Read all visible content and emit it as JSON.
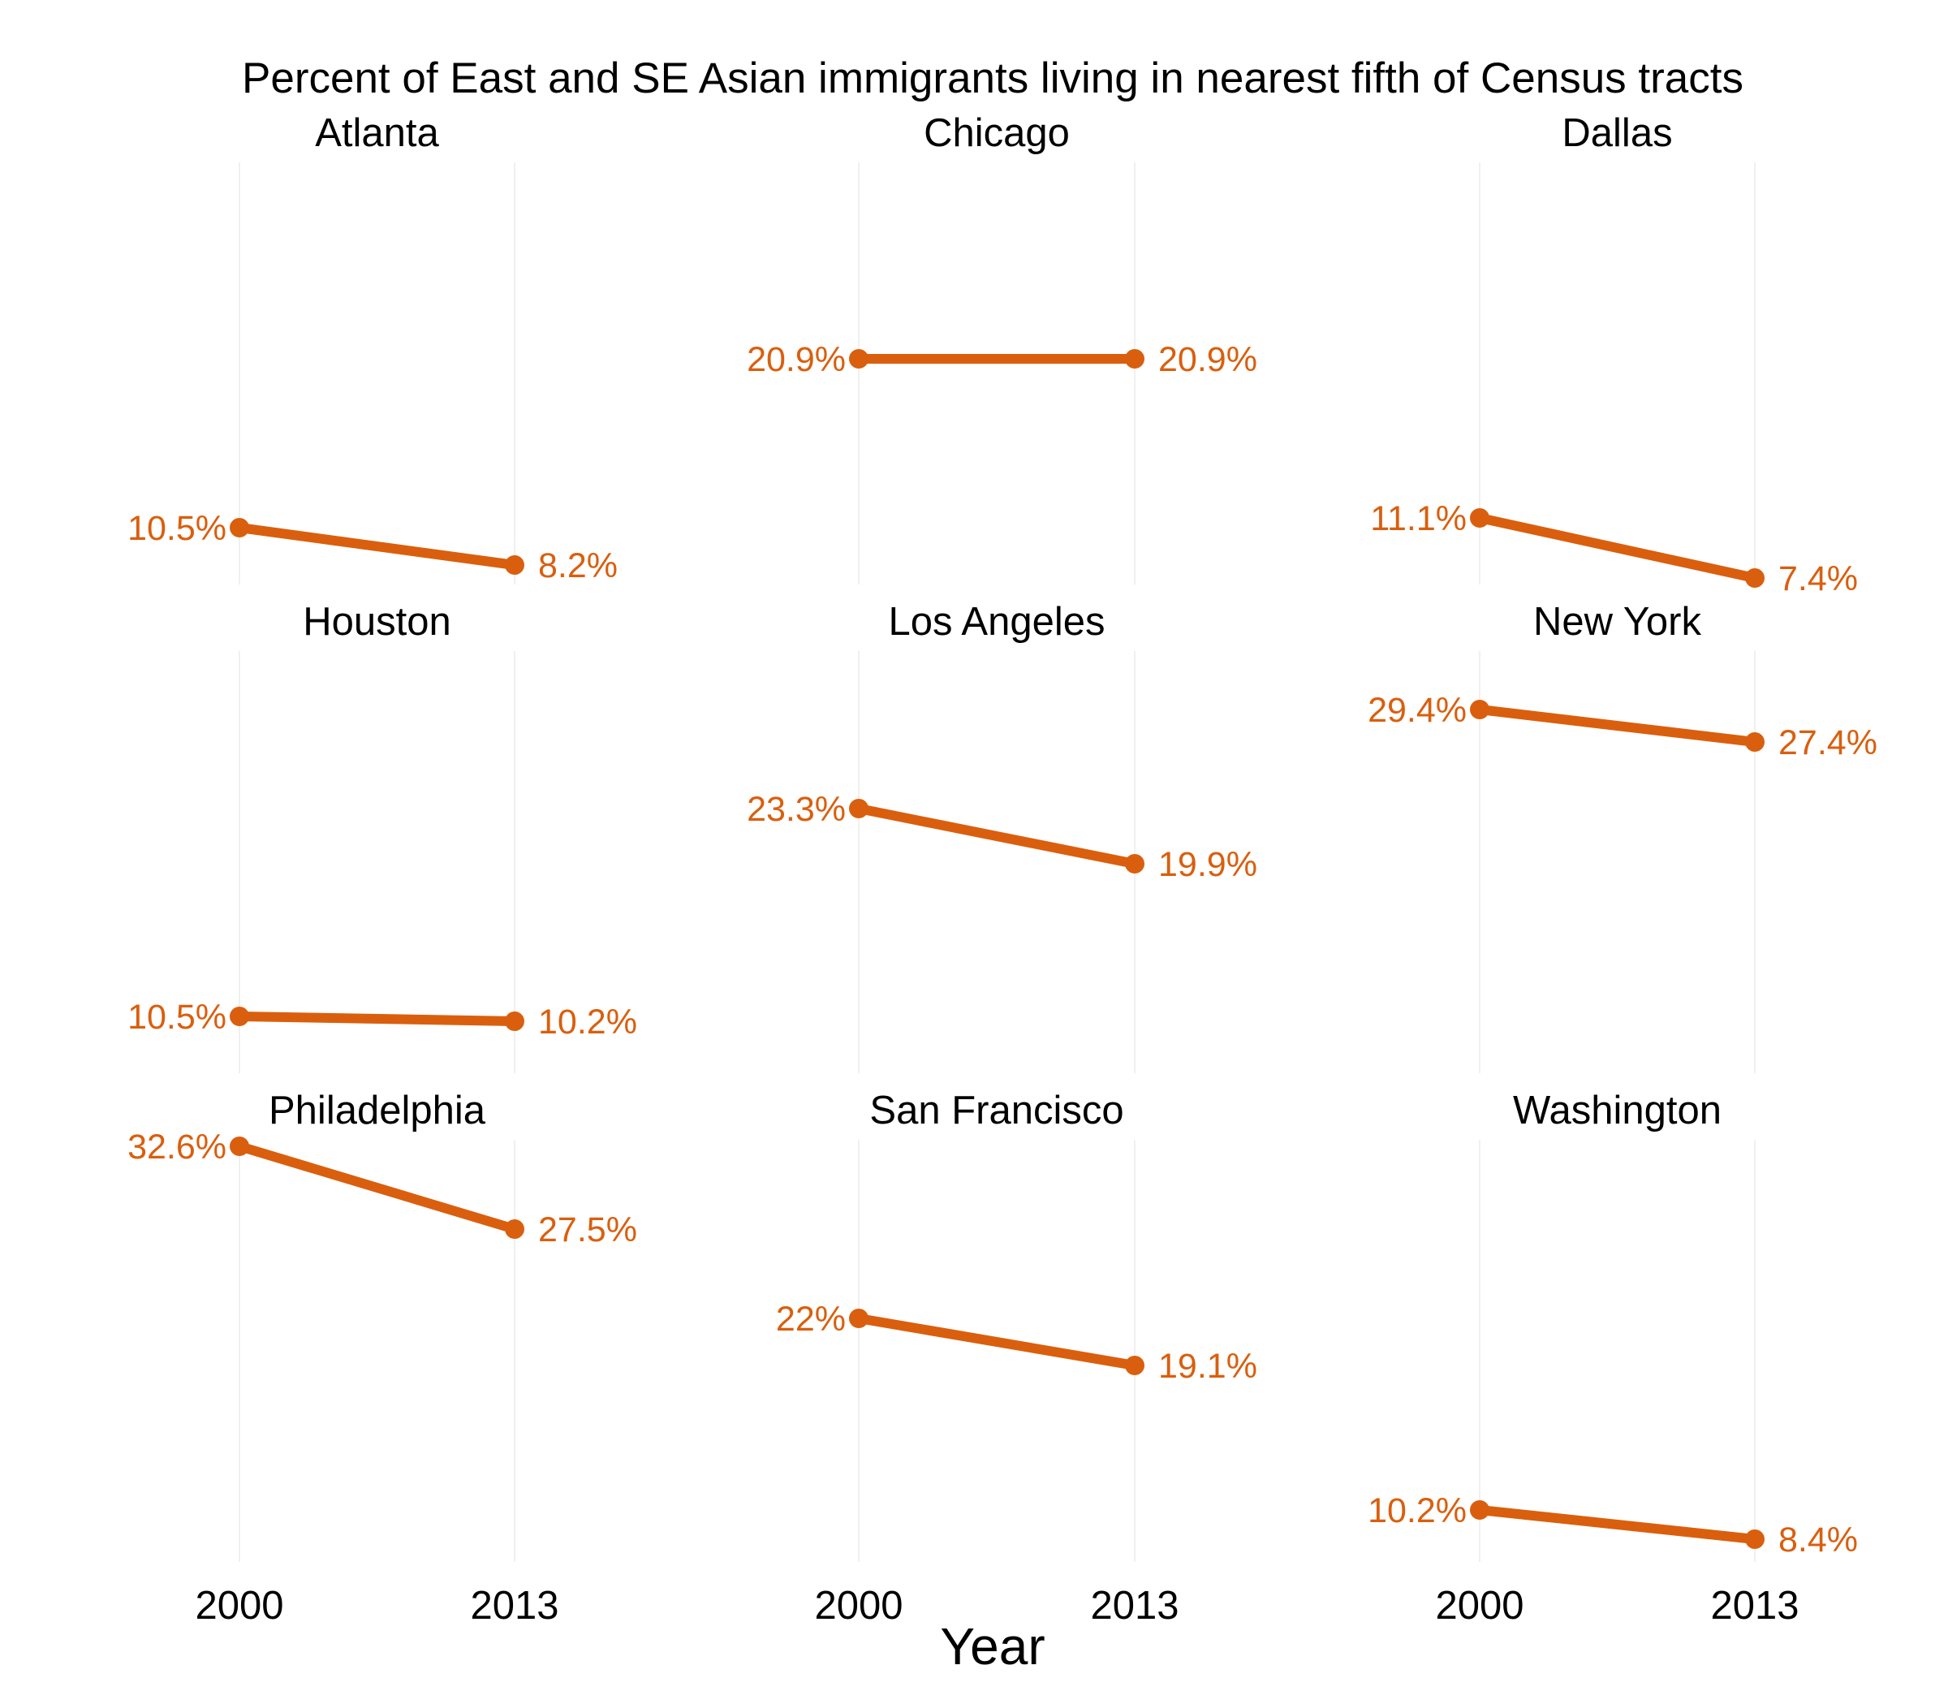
{
  "chart_data": {
    "type": "line",
    "title": "Percent of East and SE Asian immigrants living in nearest fifth of Census tracts",
    "xlabel": "Year",
    "ylabel": "",
    "x": [
      "2000",
      "2013"
    ],
    "ylim": [
      7,
      33
    ],
    "grid": "vertical only",
    "color": "#d95f0e",
    "panels": [
      {
        "name": "Atlanta",
        "values": [
          10.5,
          8.2
        ],
        "labels": [
          "10.5%",
          "8.2%"
        ]
      },
      {
        "name": "Chicago",
        "values": [
          20.9,
          20.9
        ],
        "labels": [
          "20.9%",
          "20.9%"
        ]
      },
      {
        "name": "Dallas",
        "values": [
          11.1,
          7.4
        ],
        "labels": [
          "11.1%",
          "7.4%"
        ]
      },
      {
        "name": "Houston",
        "values": [
          10.5,
          10.2
        ],
        "labels": [
          "10.5%",
          "10.2%"
        ]
      },
      {
        "name": "Los Angeles",
        "values": [
          23.3,
          19.9
        ],
        "labels": [
          "23.3%",
          "19.9%"
        ]
      },
      {
        "name": "New York",
        "values": [
          29.4,
          27.4
        ],
        "labels": [
          "29.4%",
          "27.4%"
        ]
      },
      {
        "name": "Philadelphia",
        "values": [
          32.6,
          27.5
        ],
        "labels": [
          "32.6%",
          "27.5%"
        ]
      },
      {
        "name": "San Francisco",
        "values": [
          22,
          19.1
        ],
        "labels": [
          "22%",
          "19.1%"
        ]
      },
      {
        "name": "Washington",
        "values": [
          10.2,
          8.4
        ],
        "labels": [
          "10.2%",
          "8.4%"
        ]
      }
    ]
  }
}
